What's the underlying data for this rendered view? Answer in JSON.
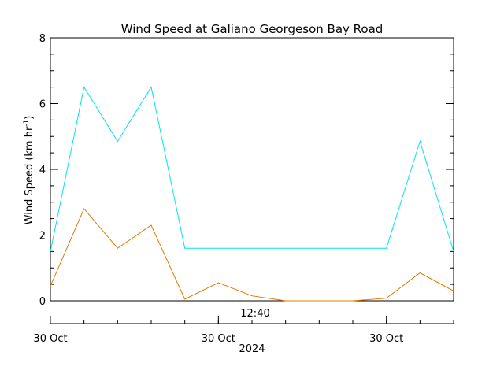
{
  "chart_data": {
    "type": "line",
    "title": "Wind Speed at Galiano Georgeson Bay Road",
    "ylabel": "Wind Speed (km hr",
    "ylabel_exponent": "-1",
    "ylabel_suffix": ")",
    "ylim": [
      0,
      8
    ],
    "yticks": [
      "0",
      "2",
      "4",
      "6",
      "8"
    ],
    "x": [
      0,
      1,
      2,
      3,
      4,
      5,
      6,
      7,
      8,
      9,
      10,
      11,
      12
    ],
    "xlim": [
      0,
      12
    ],
    "xticks": [
      {
        "x": 0,
        "label": "30 Oct"
      },
      {
        "x": 5,
        "label": "30 Oct"
      },
      {
        "x": 10,
        "label": "30 Oct"
      }
    ],
    "xtime_label": {
      "x": 6,
      "label": "12:40"
    },
    "xyear_label": "2024",
    "series": [
      {
        "color": "#00e5ee",
        "values": [
          1.5,
          6.5,
          4.85,
          6.5,
          1.6,
          1.6,
          1.6,
          1.6,
          1.6,
          1.6,
          1.6,
          4.85,
          1.5
        ]
      },
      {
        "color": "#e07800",
        "values": [
          0.45,
          2.8,
          1.6,
          2.3,
          0.05,
          0.55,
          0.15,
          0.0,
          0.0,
          0.0,
          0.08,
          0.85,
          0.3
        ]
      }
    ]
  }
}
